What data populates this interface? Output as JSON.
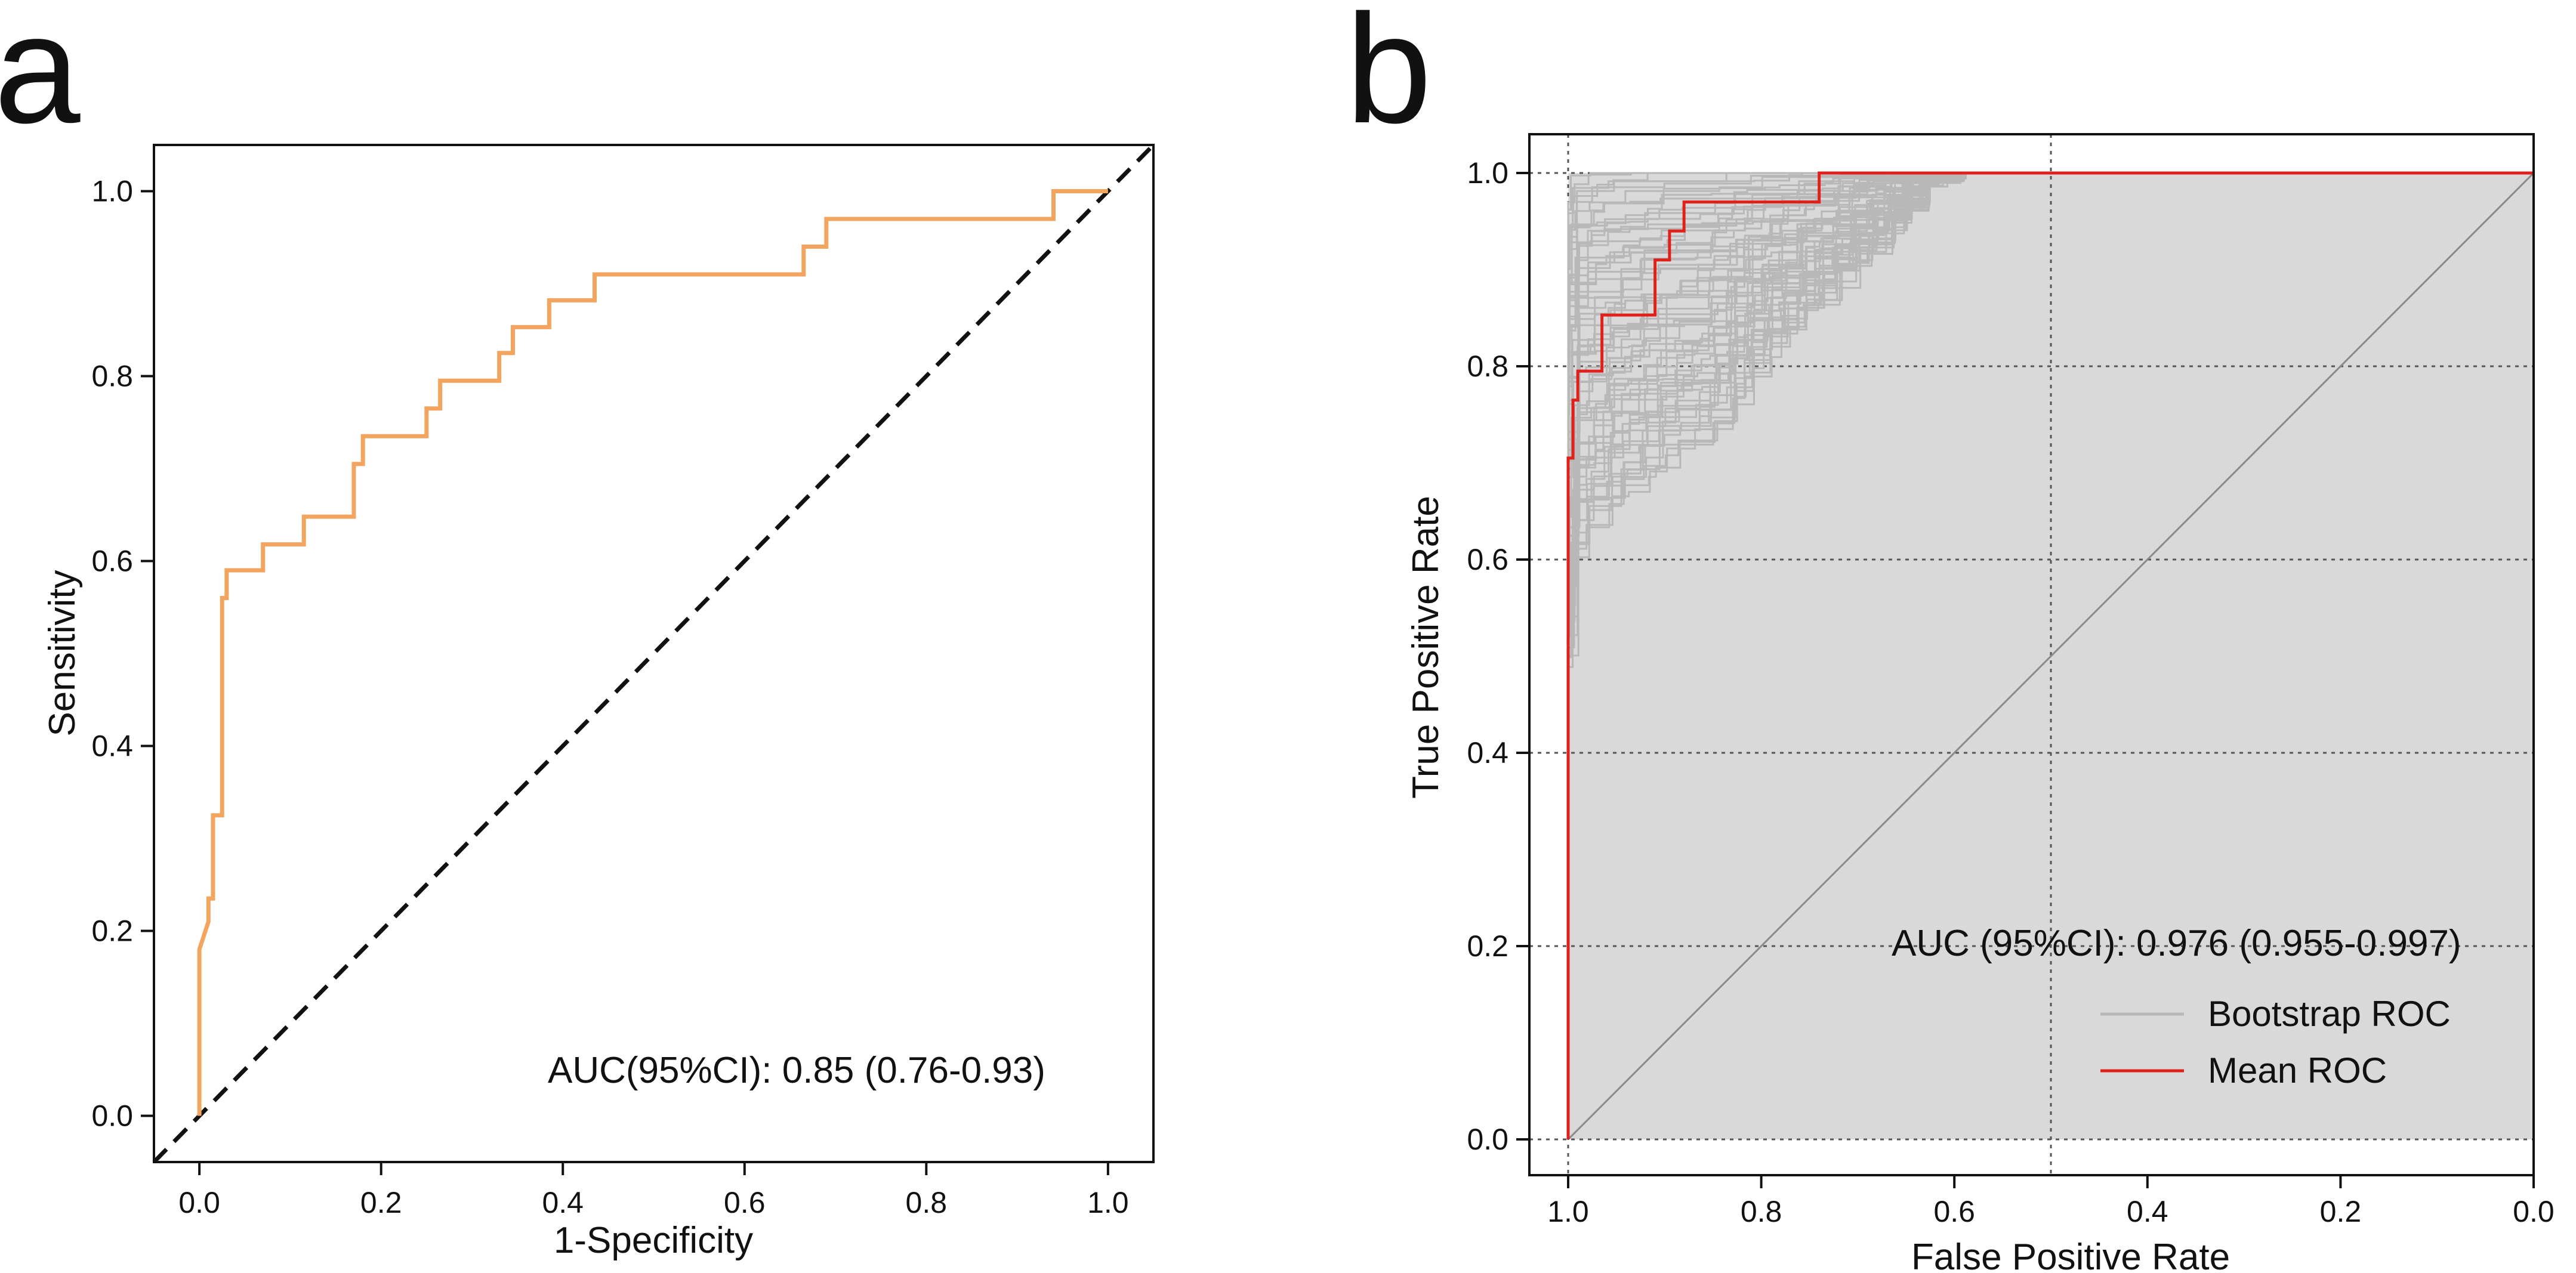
{
  "panels": {
    "a": {
      "letter": "a"
    },
    "b": {
      "letter": "b"
    }
  },
  "colors": {
    "roc_a": "#f3a55f",
    "mean_roc": "#e0201b",
    "bootstrap": "#b8b8b8",
    "shade": "#d9d9d9",
    "reference": "#111111",
    "grid": "#555555"
  },
  "chart_data": [
    {
      "type": "line",
      "panel": "a",
      "xlabel": "1-Specificity",
      "ylabel": "Sensitivity",
      "xlim": [
        -0.05,
        1.05
      ],
      "ylim": [
        -0.05,
        1.05
      ],
      "xticks": [
        0.0,
        0.2,
        0.4,
        0.6,
        0.8,
        1.0
      ],
      "yticks": [
        0.0,
        0.2,
        0.4,
        0.6,
        0.8,
        1.0
      ],
      "tick_labels": [
        "0.0",
        "0.2",
        "0.4",
        "0.6",
        "0.8",
        "1.0"
      ],
      "annotation": "AUC(95%CI): 0.85 (0.76-0.93)",
      "reference_line": {
        "style": "dashed",
        "from": [
          0,
          0
        ],
        "to": [
          1,
          1
        ]
      },
      "series": [
        {
          "name": "ROC",
          "x": [
            0.0,
            0.0,
            0.01,
            0.01,
            0.015,
            0.015,
            0.025,
            0.025,
            0.03,
            0.03,
            0.07,
            0.07,
            0.115,
            0.115,
            0.17,
            0.17,
            0.18,
            0.18,
            0.25,
            0.25,
            0.265,
            0.265,
            0.33,
            0.33,
            0.345,
            0.345,
            0.385,
            0.385,
            0.435,
            0.435,
            0.665,
            0.665,
            0.69,
            0.69,
            0.94,
            0.94,
            1.0
          ],
          "y": [
            0.0,
            0.18,
            0.21,
            0.235,
            0.235,
            0.325,
            0.325,
            0.56,
            0.56,
            0.59,
            0.59,
            0.618,
            0.618,
            0.648,
            0.648,
            0.705,
            0.705,
            0.735,
            0.735,
            0.765,
            0.765,
            0.795,
            0.795,
            0.825,
            0.825,
            0.853,
            0.853,
            0.882,
            0.882,
            0.91,
            0.91,
            0.94,
            0.94,
            0.97,
            0.97,
            1.0,
            1.0
          ]
        }
      ]
    },
    {
      "type": "line",
      "panel": "b",
      "xlabel": "False Positive Rate",
      "ylabel": "True Positive Rate",
      "x_reversed": true,
      "xlim": [
        1.04,
        -0.0
      ],
      "ylim": [
        -0.04,
        1.04
      ],
      "xticks": [
        1.0,
        0.8,
        0.6,
        0.4,
        0.2,
        0.0
      ],
      "yticks": [
        0.0,
        0.2,
        0.4,
        0.6,
        0.8,
        1.0
      ],
      "tick_labels_x": [
        "1.0",
        "0.8",
        "0.6",
        "0.4",
        "0.2",
        "0.0"
      ],
      "tick_labels_y": [
        "0.0",
        "0.2",
        "0.4",
        "0.6",
        "0.8",
        "1.0"
      ],
      "annotation": "AUC (95%CI): 0.976 (0.955-0.997)",
      "legend": [
        {
          "label": "Bootstrap ROC",
          "color": "#b8b8b8"
        },
        {
          "label": "Mean ROC",
          "color": "#e0201b"
        }
      ],
      "legend_position": "bottom-right",
      "reference_line": {
        "style": "solid-thin",
        "from": [
          1,
          0
        ],
        "to": [
          0,
          1
        ]
      },
      "series": [
        {
          "name": "Mean ROC",
          "x": [
            1.0,
            1.0,
            0.995,
            0.995,
            0.99,
            0.99,
            0.965,
            0.965,
            0.91,
            0.91,
            0.895,
            0.895,
            0.88,
            0.88,
            0.74,
            0.74,
            0.0
          ],
          "y": [
            0.0,
            0.705,
            0.705,
            0.765,
            0.765,
            0.795,
            0.795,
            0.853,
            0.853,
            0.91,
            0.91,
            0.94,
            0.94,
            0.97,
            0.97,
            1.0,
            1.0
          ]
        },
        {
          "name": "Bootstrap ROC",
          "note": "envelope of many bootstrap curves between these bounds",
          "upper_x": [
            1.0,
            0.99,
            0.97,
            0.95,
            0.92,
            0.9,
            0.85,
            0.82
          ],
          "upper_y": [
            0.97,
            1.0,
            1.0,
            1.0,
            1.0,
            1.0,
            1.0,
            1.0
          ],
          "lower_x": [
            1.0,
            0.985,
            0.95,
            0.9,
            0.85,
            0.8,
            0.75,
            0.7,
            0.65,
            0.62
          ],
          "lower_y": [
            0.48,
            0.6,
            0.65,
            0.7,
            0.72,
            0.8,
            0.85,
            0.9,
            0.95,
            1.0
          ]
        }
      ]
    }
  ]
}
